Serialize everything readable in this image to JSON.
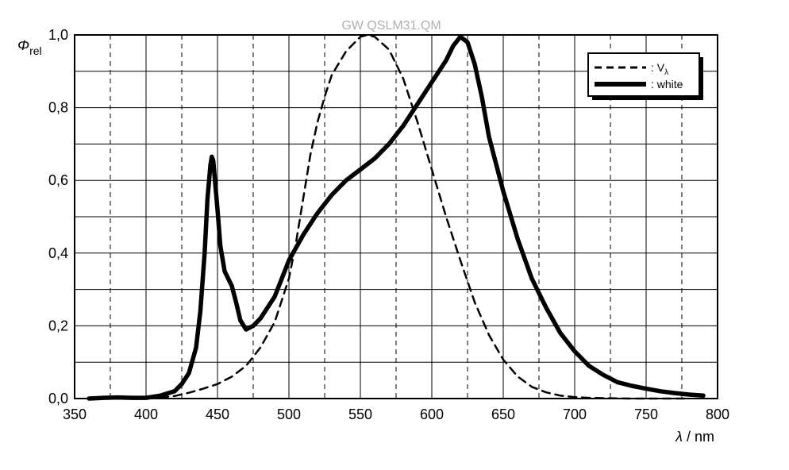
{
  "chart_data": {
    "type": "line",
    "title": "GW QSLM31.QM",
    "xlabel_symbol": "λ",
    "xlabel_unit": " / nm",
    "ylabel_symbol": "Φ",
    "ylabel_sub": "rel",
    "xlim": [
      350,
      800
    ],
    "ylim": [
      0,
      1
    ],
    "x_ticks": [
      "350",
      "400",
      "450",
      "500",
      "550",
      "600",
      "650",
      "700",
      "750",
      "800"
    ],
    "y_ticks": [
      "0,0",
      "0,2",
      "0,4",
      "0,6",
      "0,8",
      "1,0"
    ],
    "grid": true,
    "legend_position": "top-right",
    "series": [
      {
        "name": ": V",
        "name_sub": "λ",
        "style": "dashed",
        "points": [
          [
            410,
            0.003
          ],
          [
            420,
            0.007
          ],
          [
            430,
            0.016
          ],
          [
            440,
            0.027
          ],
          [
            450,
            0.04
          ],
          [
            460,
            0.06
          ],
          [
            470,
            0.09
          ],
          [
            480,
            0.14
          ],
          [
            490,
            0.21
          ],
          [
            500,
            0.33
          ],
          [
            505,
            0.43
          ],
          [
            510,
            0.55
          ],
          [
            515,
            0.67
          ],
          [
            520,
            0.76
          ],
          [
            525,
            0.83
          ],
          [
            530,
            0.89
          ],
          [
            540,
            0.955
          ],
          [
            550,
            0.995
          ],
          [
            555,
            1.0
          ],
          [
            560,
            0.995
          ],
          [
            570,
            0.96
          ],
          [
            580,
            0.88
          ],
          [
            590,
            0.76
          ],
          [
            600,
            0.63
          ],
          [
            610,
            0.5
          ],
          [
            620,
            0.38
          ],
          [
            630,
            0.265
          ],
          [
            640,
            0.175
          ],
          [
            650,
            0.107
          ],
          [
            660,
            0.061
          ],
          [
            670,
            0.032
          ],
          [
            680,
            0.017
          ],
          [
            690,
            0.008
          ],
          [
            700,
            0.004
          ],
          [
            710,
            0.002
          ],
          [
            720,
            0.001
          ],
          [
            740,
            0.0
          ],
          [
            780,
            0.0
          ]
        ]
      },
      {
        "name": ": white",
        "style": "solid",
        "points": [
          [
            360,
            0.0
          ],
          [
            370,
            0.002
          ],
          [
            380,
            0.003
          ],
          [
            390,
            0.002
          ],
          [
            400,
            0.002
          ],
          [
            410,
            0.008
          ],
          [
            420,
            0.02
          ],
          [
            425,
            0.04
          ],
          [
            430,
            0.07
          ],
          [
            435,
            0.14
          ],
          [
            438,
            0.24
          ],
          [
            441,
            0.4
          ],
          [
            443,
            0.55
          ],
          [
            445,
            0.64
          ],
          [
            446,
            0.665
          ],
          [
            447,
            0.655
          ],
          [
            448,
            0.61
          ],
          [
            450,
            0.52
          ],
          [
            452,
            0.42
          ],
          [
            455,
            0.35
          ],
          [
            460,
            0.31
          ],
          [
            463,
            0.265
          ],
          [
            466,
            0.215
          ],
          [
            470,
            0.19
          ],
          [
            475,
            0.2
          ],
          [
            480,
            0.22
          ],
          [
            485,
            0.25
          ],
          [
            490,
            0.28
          ],
          [
            495,
            0.33
          ],
          [
            500,
            0.38
          ],
          [
            510,
            0.45
          ],
          [
            520,
            0.51
          ],
          [
            530,
            0.56
          ],
          [
            540,
            0.6
          ],
          [
            550,
            0.63
          ],
          [
            560,
            0.66
          ],
          [
            570,
            0.7
          ],
          [
            580,
            0.75
          ],
          [
            590,
            0.81
          ],
          [
            600,
            0.87
          ],
          [
            610,
            0.93
          ],
          [
            615,
            0.97
          ],
          [
            620,
            0.995
          ],
          [
            625,
            0.98
          ],
          [
            630,
            0.92
          ],
          [
            635,
            0.83
          ],
          [
            640,
            0.72
          ],
          [
            650,
            0.57
          ],
          [
            660,
            0.44
          ],
          [
            670,
            0.33
          ],
          [
            680,
            0.25
          ],
          [
            690,
            0.18
          ],
          [
            700,
            0.13
          ],
          [
            710,
            0.09
          ],
          [
            720,
            0.065
          ],
          [
            730,
            0.045
          ],
          [
            740,
            0.035
          ],
          [
            750,
            0.027
          ],
          [
            760,
            0.02
          ],
          [
            770,
            0.015
          ],
          [
            780,
            0.011
          ],
          [
            790,
            0.008
          ]
        ]
      }
    ]
  }
}
